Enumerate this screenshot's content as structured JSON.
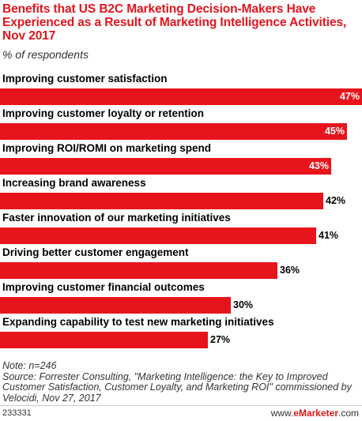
{
  "title": "Benefits that US B2C Marketing Decision-Makers Have Experienced as a Result of Marketing Intelligence Activities, Nov 2017",
  "subtitle": "% of respondents",
  "chart_data": {
    "type": "bar",
    "orientation": "horizontal",
    "title": "Benefits that US B2C Marketing Decision-Makers Have Experienced as a Result of Marketing Intelligence Activities, Nov 2017",
    "subtitle": "% of respondents",
    "categories": [
      "Improving customer satisfaction",
      "Improving customer loyalty or retention",
      "Improving ROI/ROMI on marketing spend",
      "Increasing brand awareness",
      "Faster innovation of our marketing initiatives",
      "Driving better customer engagement",
      "Improving customer financial outcomes",
      "Expanding capability to test new marketing initiatives"
    ],
    "values": [
      47,
      45,
      43,
      42,
      41,
      36,
      30,
      27
    ],
    "value_labels": [
      "47%",
      "45%",
      "43%",
      "42%",
      "41%",
      "36%",
      "30%",
      "27%"
    ],
    "xlim": [
      0,
      47
    ],
    "grid": false,
    "bar_color": "#e8141c"
  },
  "footer": {
    "note": "Note: n=246",
    "source": "Source: Forrester Consulting, \"Marketing Intelligence: the Key to Improved Customer Satisfaction, Customer Loyalty, and Marketing ROI\" commissioned by Velocidi, Nov 27, 2017"
  },
  "chart_id": "233331",
  "brand": {
    "prefix": "www.",
    "name": "eMarketer",
    "suffix": ".com"
  },
  "colors": {
    "accent": "#e3141c",
    "bar": "#e8141c"
  }
}
